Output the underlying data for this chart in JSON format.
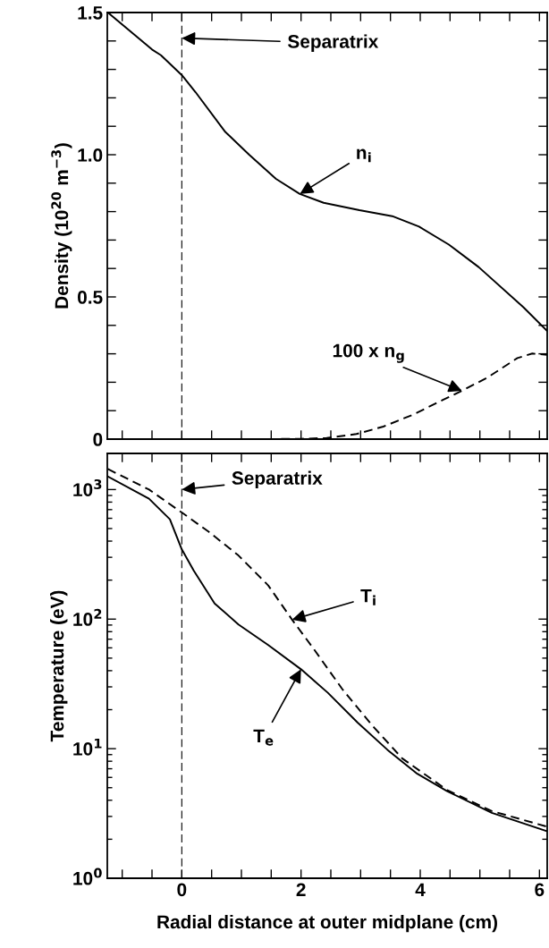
{
  "chart_data": [
    {
      "type": "line",
      "ylabel": "Density (10$^{20}$ m$^{−3}$)",
      "xlim": [
        -1.25,
        6.13
      ],
      "ylim": [
        0,
        1.5
      ],
      "tick_labels": "y",
      "grid": false,
      "xticks": [
        {
          "value": -1,
          "label": null
        },
        {
          "value": -0.5,
          "label": null
        },
        {
          "value": 0,
          "label": null
        },
        {
          "value": 0.5,
          "label": null
        },
        {
          "value": 1,
          "label": null
        },
        {
          "value": 1.5,
          "label": null
        },
        {
          "value": 2,
          "label": null
        },
        {
          "value": 2.5,
          "label": null
        },
        {
          "value": 3,
          "label": null
        },
        {
          "value": 3.5,
          "label": null
        },
        {
          "value": 4,
          "label": null
        },
        {
          "value": 4.5,
          "label": null
        },
        {
          "value": 5,
          "label": null
        },
        {
          "value": 5.5,
          "label": null
        },
        {
          "value": 6,
          "label": null
        }
      ],
      "yticks": [
        0,
        {
          "value": 0.1,
          "label": null
        },
        {
          "value": 0.2,
          "label": null
        },
        {
          "value": 0.3,
          "label": null
        },
        {
          "value": 0.4,
          "label": null
        },
        0.5,
        {
          "value": 0.6,
          "label": null
        },
        {
          "value": 0.7,
          "label": null
        },
        {
          "value": 0.8,
          "label": null
        },
        {
          "value": 0.9,
          "label": null
        },
        {
          "value": 1.0,
          "label": "1.0"
        },
        {
          "value": 1.1,
          "label": null
        },
        {
          "value": 1.2,
          "label": null
        },
        {
          "value": 1.3,
          "label": null
        },
        {
          "value": 1.4,
          "label": null
        },
        {
          "value": 1.5,
          "label": "1.5"
        }
      ],
      "series": [
        {
          "color": "#000000",
          "line_style": "solid",
          "x": [
            -1.24,
            -0.5,
            -0.35,
            0,
            0.23,
            0.73,
            1.13,
            1.58,
            1.98,
            2.38,
            2.98,
            3.53,
            3.98,
            4.48,
            4.98,
            5.73,
            6.13
          ],
          "values": [
            1.5,
            1.37,
            1.35,
            1.28,
            1.22,
            1.08,
            1.0,
            0.915,
            0.862,
            0.831,
            0.805,
            0.784,
            0.747,
            0.684,
            0.605,
            0.464,
            0.38
          ]
        },
        {
          "color": "#000000",
          "line_style": "dashed",
          "x": [
            1.2,
            2.0,
            2.43,
            2.93,
            3.38,
            3.88,
            4.38,
            4.7,
            5.13,
            5.63,
            5.88,
            6.13
          ],
          "values": [
            0,
            0.001,
            0.004,
            0.018,
            0.044,
            0.086,
            0.138,
            0.17,
            0.217,
            0.285,
            0.301,
            0.296
          ]
        }
      ],
      "ref_lines": [
        {
          "axis": "x",
          "value": 0,
          "color": "#000000",
          "line_style": "dashed",
          "label": "Separatrix"
        }
      ],
      "annotations": [
        {
          "text": "n$_{i}$",
          "x": 1.98,
          "y": 0.862
        },
        {
          "text": "100 x n$_{g}$",
          "x": 4.7,
          "y": 0.17
        }
      ]
    },
    {
      "type": "line",
      "ylabel": "Temperature (eV)",
      "xlabel": "Radial distance at outer midplane (cm)",
      "log": "y",
      "xlim": [
        -1.25,
        6.13
      ],
      "ylim": [
        1,
        1900
      ],
      "grid": false,
      "xticks": [
        {
          "value": -1,
          "label": null
        },
        {
          "value": -0.5,
          "label": null
        },
        {
          "value": 0,
          "label": "0"
        },
        {
          "value": 0.5,
          "label": null
        },
        {
          "value": 1,
          "label": null
        },
        {
          "value": 1.5,
          "label": null
        },
        {
          "value": 2,
          "label": "2"
        },
        {
          "value": 2.5,
          "label": null
        },
        {
          "value": 3,
          "label": null
        },
        {
          "value": 3.5,
          "label": null
        },
        {
          "value": 4,
          "label": "4"
        },
        {
          "value": 4.5,
          "label": null
        },
        {
          "value": 5,
          "label": null
        },
        {
          "value": 5.5,
          "label": null
        },
        {
          "value": 6,
          "label": "6"
        }
      ],
      "yticks": [
        {
          "value": 1,
          "label": "10$^{0}$"
        },
        {
          "value": 10,
          "label": "10$^{1}$"
        },
        {
          "value": 100,
          "label": "10$^{2}$"
        },
        {
          "value": 1000,
          "label": "10$^{3}$"
        }
      ],
      "series": [
        {
          "color": "#000000",
          "line_style": "solid",
          "x": [
            -1.24,
            -0.55,
            -0.2,
            0,
            0.2,
            0.55,
            0.95,
            1.45,
            2.0,
            2.45,
            2.95,
            3.45,
            3.95,
            4.45,
            5.2,
            6.13
          ],
          "values": [
            1260,
            850,
            590,
            345,
            237,
            132,
            91,
            63,
            41,
            27,
            15.9,
            9.8,
            6.4,
            4.7,
            3.2,
            2.3
          ]
        },
        {
          "color": "#000000",
          "line_style": "dashed",
          "x": [
            -1.24,
            -0.55,
            0,
            0.45,
            0.95,
            1.45,
            1.85,
            2.2,
            2.7,
            3.2,
            3.7,
            4.45,
            5.2,
            6.13
          ],
          "values": [
            1440,
            1000,
            665,
            473,
            310,
            182,
            99,
            60,
            28.5,
            15,
            8.4,
            4.8,
            3.3,
            2.5
          ]
        }
      ],
      "ref_lines": [
        {
          "axis": "x",
          "value": 0,
          "color": "#000000",
          "line_style": "dashed",
          "label": "Separatrix"
        }
      ],
      "annotations": [
        {
          "text": "T$_{i}$",
          "x": 1.85,
          "y": 99
        },
        {
          "text": "T$_{e}$",
          "x": 2.0,
          "y": 41
        }
      ]
    }
  ]
}
